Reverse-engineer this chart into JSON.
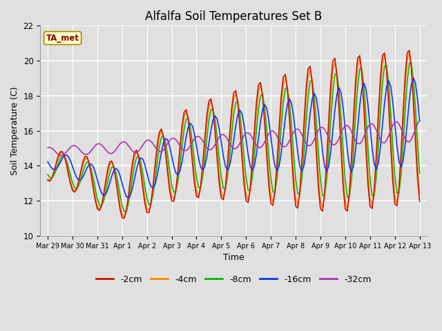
{
  "title": "Alfalfa Soil Temperatures Set B",
  "xlabel": "Time",
  "ylabel": "Soil Temperature (C)",
  "ylim": [
    10,
    22
  ],
  "background_color": "#e0e0e0",
  "plot_bg_color": "#e0e0e0",
  "grid_color": "#ffffff",
  "ta_met_box_color": "#ffffcc",
  "ta_met_text_color": "#880000",
  "tick_labels": [
    "Mar 29",
    "Mar 30",
    "Mar 31",
    "Apr 1",
    "Apr 2",
    "Apr 3",
    "Apr 4",
    "Apr 5",
    "Apr 6",
    "Apr 7",
    "Apr 8",
    "Apr 9",
    "Apr 10",
    "Apr 11",
    "Apr 12",
    "Apr 13"
  ],
  "series_labels": [
    "-2cm",
    "-4cm",
    "-8cm",
    "-16cm",
    "-32cm"
  ],
  "series_colors": [
    "#cc1100",
    "#ff8800",
    "#00bb00",
    "#1133ff",
    "#aa33aa"
  ],
  "line_width": 1.2,
  "legend_fontsize": 9,
  "title_fontsize": 12
}
